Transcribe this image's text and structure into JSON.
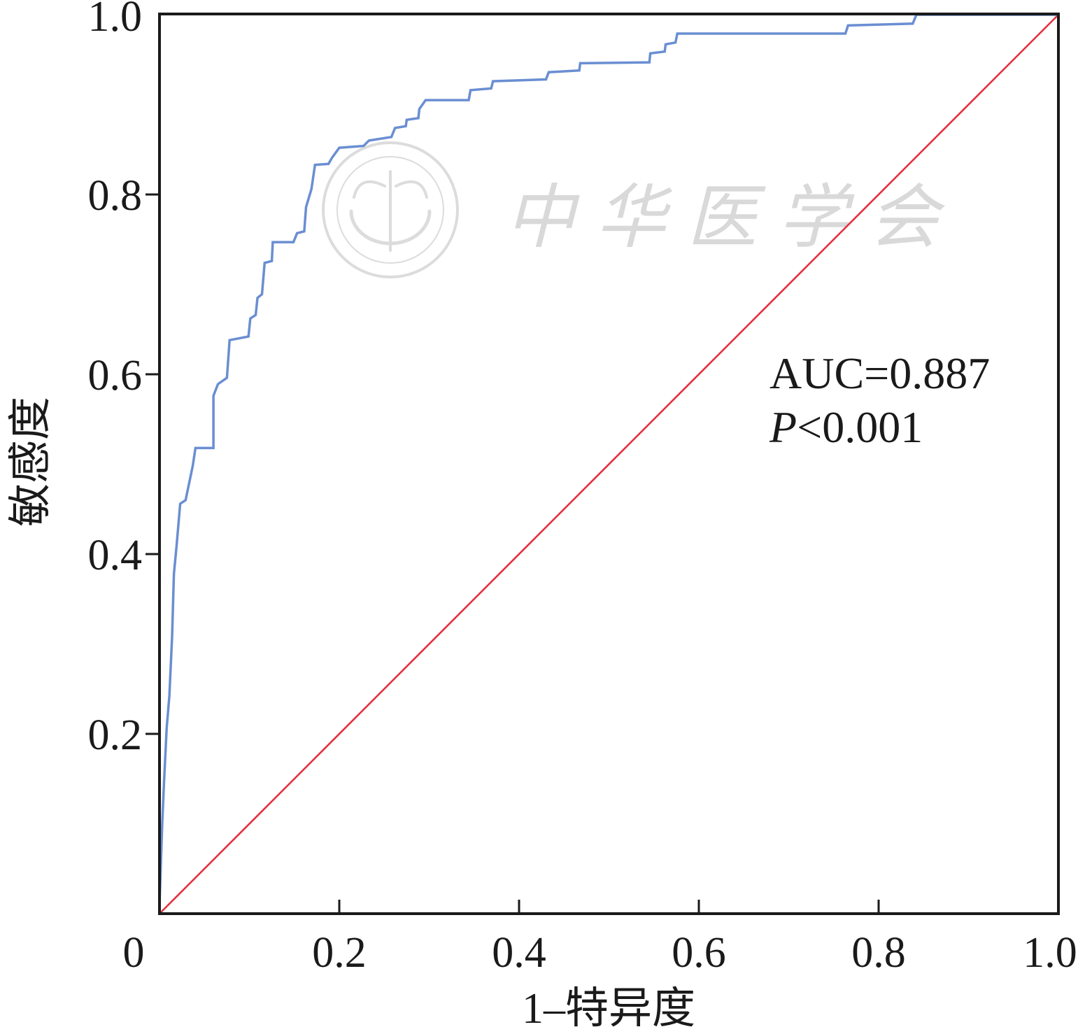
{
  "chart_data": {
    "type": "line",
    "xlabel": "1–特异度",
    "ylabel": "敏感度",
    "xlim": [
      0,
      1
    ],
    "ylim": [
      0,
      1
    ],
    "grid": false,
    "legend": false,
    "x_ticks": [
      {
        "value": 0,
        "label": "0"
      },
      {
        "value": 0.2,
        "label": "0.2"
      },
      {
        "value": 0.4,
        "label": "0.4"
      },
      {
        "value": 0.6,
        "label": "0.6"
      },
      {
        "value": 0.8,
        "label": "0.8"
      },
      {
        "value": 1.0,
        "label": "1.0"
      }
    ],
    "y_ticks": [
      {
        "value": 0.2,
        "label": "0.2"
      },
      {
        "value": 0.4,
        "label": "0.4"
      },
      {
        "value": 0.6,
        "label": "0.6"
      },
      {
        "value": 0.8,
        "label": "0.8"
      },
      {
        "value": 1.0,
        "label": "1.0"
      }
    ],
    "series": [
      {
        "color": "#6a8ed2",
        "points": [
          [
            0,
            0
          ],
          [
            0,
            0.01
          ],
          [
            0.003,
            0.1
          ],
          [
            0.005,
            0.145
          ],
          [
            0.008,
            0.207
          ],
          [
            0.011,
            0.242
          ],
          [
            0.014,
            0.308
          ],
          [
            0.016,
            0.378
          ],
          [
            0.019,
            0.409
          ],
          [
            0.023,
            0.456
          ],
          [
            0.029,
            0.46
          ],
          [
            0.033,
            0.479
          ],
          [
            0.037,
            0.498
          ],
          [
            0.04,
            0.518
          ],
          [
            0.06,
            0.518
          ],
          [
            0.06,
            0.576
          ],
          [
            0.065,
            0.589
          ],
          [
            0.075,
            0.596
          ],
          [
            0.078,
            0.638
          ],
          [
            0.099,
            0.642
          ],
          [
            0.101,
            0.662
          ],
          [
            0.107,
            0.666
          ],
          [
            0.109,
            0.685
          ],
          [
            0.114,
            0.689
          ],
          [
            0.117,
            0.724
          ],
          [
            0.125,
            0.726
          ],
          [
            0.126,
            0.747
          ],
          [
            0.149,
            0.747
          ],
          [
            0.153,
            0.757
          ],
          [
            0.161,
            0.759
          ],
          [
            0.163,
            0.786
          ],
          [
            0.169,
            0.806
          ],
          [
            0.173,
            0.833
          ],
          [
            0.188,
            0.834
          ],
          [
            0.192,
            0.841
          ],
          [
            0.2,
            0.852
          ],
          [
            0.227,
            0.854
          ],
          [
            0.233,
            0.86
          ],
          [
            0.258,
            0.864
          ],
          [
            0.262,
            0.874
          ],
          [
            0.274,
            0.876
          ],
          [
            0.275,
            0.883
          ],
          [
            0.288,
            0.885
          ],
          [
            0.289,
            0.895
          ],
          [
            0.296,
            0.905
          ],
          [
            0.344,
            0.905
          ],
          [
            0.346,
            0.916
          ],
          [
            0.369,
            0.918
          ],
          [
            0.371,
            0.926
          ],
          [
            0.43,
            0.928
          ],
          [
            0.433,
            0.936
          ],
          [
            0.467,
            0.938
          ],
          [
            0.468,
            0.946
          ],
          [
            0.545,
            0.947
          ],
          [
            0.546,
            0.957
          ],
          [
            0.562,
            0.959
          ],
          [
            0.563,
            0.967
          ],
          [
            0.574,
            0.969
          ],
          [
            0.576,
            0.979
          ],
          [
            0.763,
            0.979
          ],
          [
            0.766,
            0.988
          ],
          [
            0.838,
            0.99
          ],
          [
            0.842,
            1.0
          ],
          [
            1.0,
            1.0
          ]
        ]
      },
      {
        "color": "#e2323f",
        "points": [
          [
            0,
            0
          ],
          [
            1,
            1
          ]
        ]
      }
    ],
    "annotations": {
      "auc": "AUC=0.887",
      "p_symbol": "P",
      "p_value": "<0.001"
    }
  },
  "watermark": {
    "text": "中华医学会"
  }
}
